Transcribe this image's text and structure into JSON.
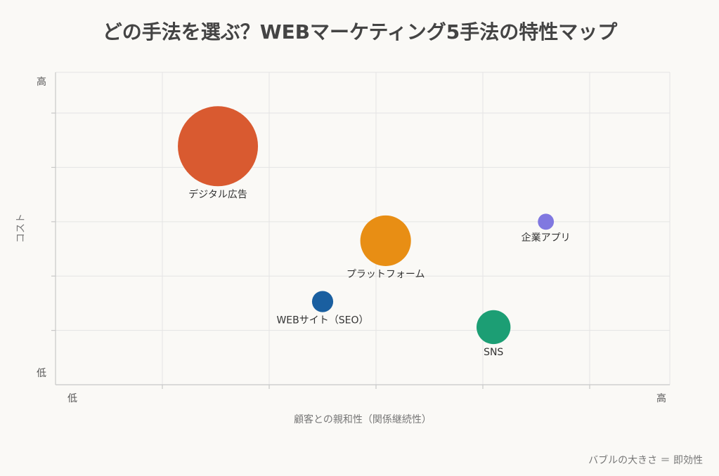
{
  "chart_data": {
    "type": "bubble",
    "title": "どの手法を選ぶ？WEBマーケティング5手法の特性マップ",
    "x_label": "顧客との親和性（関係継続性）",
    "y_label": "コスト",
    "size_note": "バブルの大きさ ＝ 即効性",
    "xlim": [
      0,
      5.75
    ],
    "ylim": [
      0,
      5.75
    ],
    "xticks": [
      {
        "value": 0,
        "label": "低"
      },
      {
        "value": 5.75,
        "label": "高"
      }
    ],
    "yticks": [
      {
        "value": 0,
        "label": "低"
      },
      {
        "value": 5.75,
        "label": "高"
      }
    ],
    "xgrid": [
      1,
      2,
      3,
      4,
      5
    ],
    "ygrid": [
      1,
      2,
      3,
      4,
      5
    ],
    "series": [
      {
        "name": "デジタル広告",
        "color": "#d95a30",
        "x": [
          1.52
        ],
        "values": [
          4.39
        ],
        "sizes": [
          100
        ]
      },
      {
        "name": "プラットフォーム",
        "color": "#e88e14",
        "x": [
          3.09
        ],
        "values": [
          2.65
        ],
        "sizes": [
          40
        ]
      },
      {
        "name": "WEBサイト（SEO）",
        "color": "#1a5fa0",
        "x": [
          2.5
        ],
        "values": [
          1.53
        ],
        "sizes": [
          7
        ]
      },
      {
        "name": "SNS",
        "color": "#1c9e74",
        "x": [
          4.1
        ],
        "values": [
          1.06
        ],
        "sizes": [
          18
        ]
      },
      {
        "name": "企業アプリ",
        "color": "#8078e0",
        "x": [
          4.59
        ],
        "values": [
          3.0
        ],
        "sizes": [
          4
        ]
      }
    ]
  }
}
